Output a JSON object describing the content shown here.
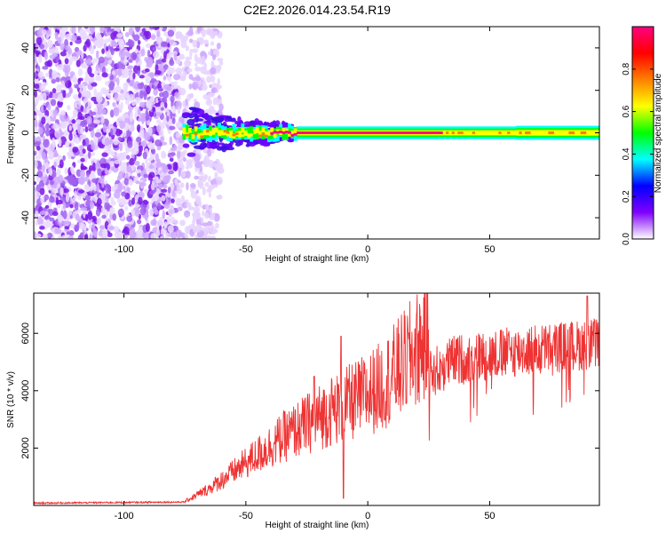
{
  "title": "C2E2.2026.014.23.54.R19",
  "chart_data": [
    {
      "type": "heatmap",
      "name": "spectrogram",
      "xlabel": "Height of straight line (km)",
      "ylabel": "Frequency (Hz)",
      "xlim": [
        -137,
        95
      ],
      "ylim": [
        -50,
        50
      ],
      "x_ticks": [
        -100,
        -50,
        0,
        50
      ],
      "y_ticks": [
        -40,
        -20,
        0,
        20,
        40
      ],
      "x_tick_labels": [
        "-100",
        "-50",
        "0",
        "50"
      ],
      "y_tick_labels": [
        "-40",
        "-20",
        "0",
        "20",
        "40"
      ],
      "noise_region_end_x": -78,
      "signal_start_x": -76,
      "signal_frequency_hz": 0,
      "colorbar": {
        "label": "Normalized spectral amplitude",
        "range": [
          0,
          1
        ],
        "ticks": [
          0.0,
          0.2,
          0.4,
          0.6,
          0.8
        ],
        "tick_labels": [
          "0.0",
          "0.2",
          "0.4",
          "0.6",
          "0.8"
        ],
        "colors": [
          "#ffffff",
          "#8000ff",
          "#0000ff",
          "#00ffff",
          "#00ff00",
          "#ffff00",
          "#ff8000",
          "#ff0000",
          "#ff0080"
        ]
      }
    },
    {
      "type": "line",
      "name": "snr",
      "xlabel": "Height of straight line (km)",
      "ylabel": "SNR (10 * v/v)",
      "xlim": [
        -137,
        95
      ],
      "ylim": [
        0,
        7400
      ],
      "x_ticks": [
        -100,
        -50,
        0,
        50
      ],
      "y_ticks": [
        2000,
        4000,
        6000
      ],
      "x_tick_labels": [
        "-100",
        "-50",
        "0",
        "50"
      ],
      "y_tick_labels": [
        "2000",
        "4000",
        "6000"
      ],
      "color": "#ee3333",
      "envelope": [
        {
          "x": -137,
          "y": 80
        },
        {
          "x": -75,
          "y": 120
        },
        {
          "x": -65,
          "y": 500
        },
        {
          "x": -55,
          "y": 1000
        },
        {
          "x": -45,
          "y": 1500
        },
        {
          "x": -35,
          "y": 2000
        },
        {
          "x": -25,
          "y": 2400
        },
        {
          "x": -15,
          "y": 2800
        },
        {
          "x": -5,
          "y": 3100
        },
        {
          "x": 5,
          "y": 3500
        },
        {
          "x": 15,
          "y": 4200
        },
        {
          "x": 25,
          "y": 5000
        },
        {
          "x": 35,
          "y": 5500
        },
        {
          "x": 50,
          "y": 5700
        },
        {
          "x": 70,
          "y": 5900
        },
        {
          "x": 95,
          "y": 6100
        }
      ],
      "spikes": [
        {
          "x": -22,
          "y": 4500
        },
        {
          "x": -11,
          "y": 5900
        },
        {
          "x": -10,
          "y": 250
        },
        {
          "x": 90,
          "y": 7300
        }
      ]
    }
  ]
}
